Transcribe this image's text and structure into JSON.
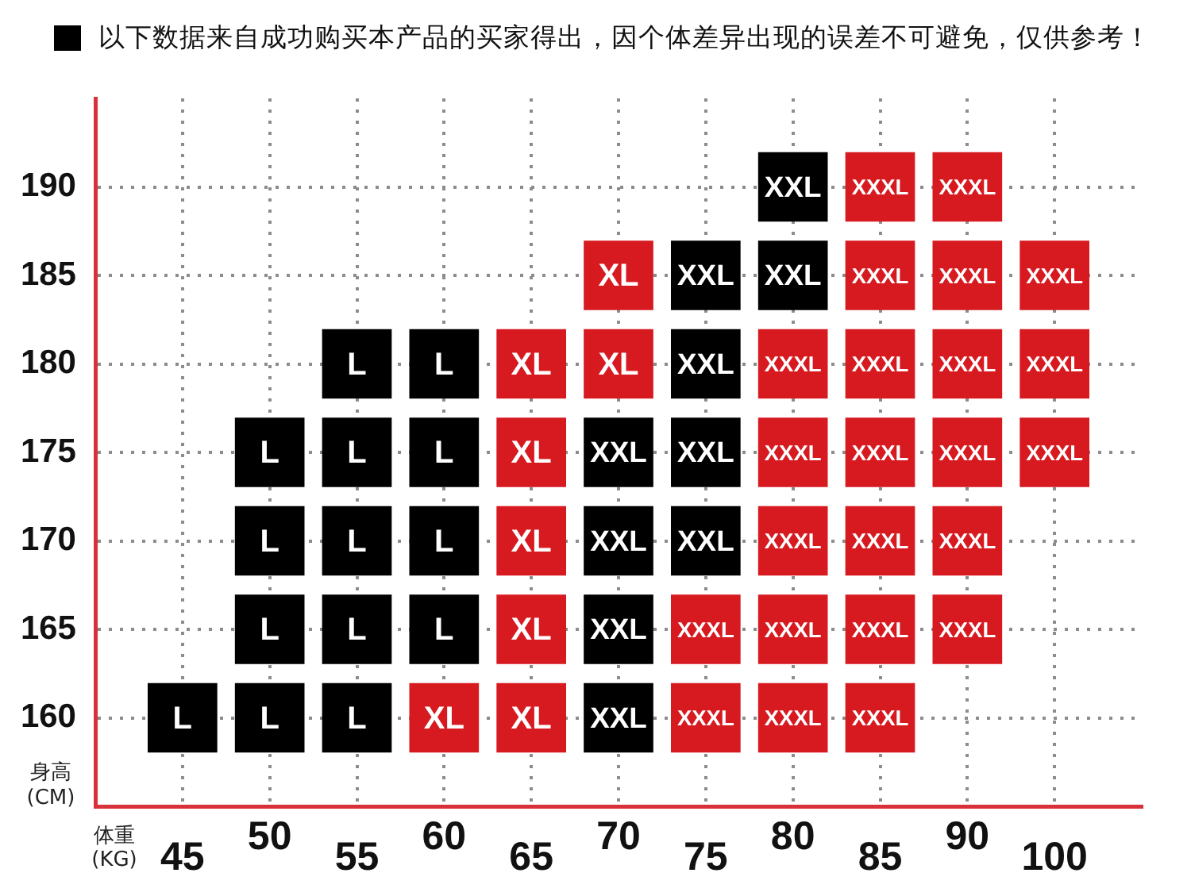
{
  "chart_data": {
    "type": "scatter",
    "title": "以下数据来自成功购买本产品的买家得出，因个体差异出现的误差不可避免，仅供参考！",
    "xlabel": "体重\n(KG)",
    "ylabel": "身高\n(CM)",
    "categories": [
      "45",
      "50",
      "55",
      "60",
      "65",
      "70",
      "75",
      "80",
      "85",
      "90",
      "100"
    ],
    "ylim": [
      155,
      195
    ],
    "yticks": [
      160,
      165,
      170,
      175,
      180,
      185,
      190
    ],
    "grid": true,
    "marker": "square",
    "series": [
      {
        "name": "L",
        "color": "#000000",
        "x": [
          "45",
          "50",
          "50",
          "50",
          "50",
          "55",
          "55",
          "55",
          "55",
          "55",
          "60",
          "60",
          "60",
          "60"
        ],
        "values": [
          160,
          175,
          170,
          165,
          160,
          180,
          175,
          170,
          165,
          160,
          180,
          175,
          170,
          165
        ]
      },
      {
        "name": "XL",
        "color": "#d71920",
        "x": [
          "60",
          "65",
          "65",
          "65",
          "65",
          "65",
          "70",
          "70"
        ],
        "values": [
          160,
          180,
          175,
          170,
          165,
          160,
          185,
          180
        ]
      },
      {
        "name": "XXL",
        "color": "#000000",
        "x": [
          "70",
          "70",
          "70",
          "70",
          "75",
          "75",
          "75",
          "75",
          "80",
          "80"
        ],
        "values": [
          175,
          170,
          165,
          160,
          185,
          180,
          175,
          170,
          190,
          185
        ]
      },
      {
        "name": "XXXL",
        "color": "#d71920",
        "x": [
          "75",
          "75",
          "80",
          "80",
          "80",
          "80",
          "80",
          "85",
          "85",
          "85",
          "85",
          "85",
          "85",
          "85",
          "90",
          "90",
          "90",
          "90",
          "90",
          "90",
          "100",
          "100",
          "100"
        ],
        "values": [
          165,
          160,
          180,
          175,
          170,
          165,
          160,
          190,
          185,
          180,
          175,
          170,
          165,
          160,
          190,
          185,
          180,
          175,
          170,
          165,
          185,
          180,
          175
        ]
      }
    ]
  }
}
